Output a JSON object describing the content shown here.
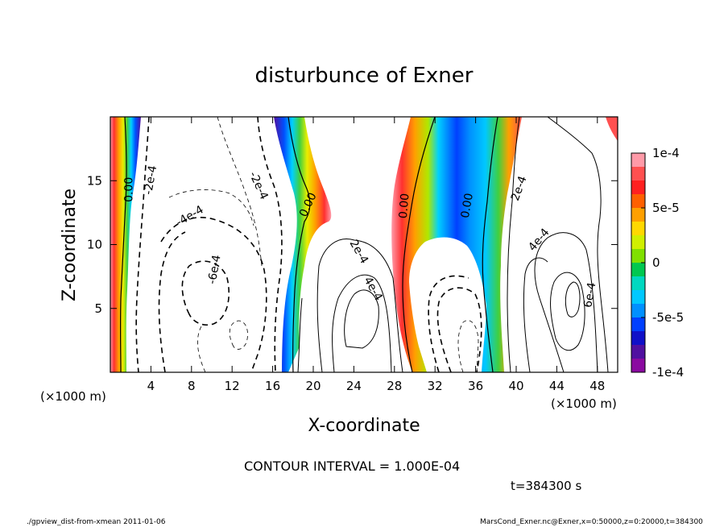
{
  "chart_data": {
    "type": "contour",
    "title": "disturbunce of Exner",
    "xlabel": "X-coordinate",
    "ylabel": "Z-coordinate",
    "x_unit": "(×1000 m)",
    "y_unit": "(×1000 m)",
    "xlim": [
      0,
      50
    ],
    "ylim": [
      0,
      20
    ],
    "x_ticks": [
      4,
      8,
      12,
      16,
      20,
      24,
      28,
      32,
      36,
      40,
      44,
      48
    ],
    "y_ticks": [
      5,
      10,
      15
    ],
    "colorbar": {
      "range": [
        -0.0001,
        0.0001
      ],
      "tick_labels": [
        "1e-4",
        "5e-5",
        "0",
        "-5e-5",
        "-1e-4"
      ],
      "colors": [
        "#ff9aa8",
        "#ff5050",
        "#ff2020",
        "#ff6000",
        "#ffa000",
        "#ffd800",
        "#d0ef00",
        "#80e000",
        "#00c850",
        "#00d8c0",
        "#00c8ff",
        "#0090ff",
        "#0040ff",
        "#1010c8",
        "#5010a0",
        "#8a0aa0"
      ]
    },
    "contour_labels": [
      {
        "text": "0.00",
        "x": 2.2,
        "z": 14.3,
        "angle": -90
      },
      {
        "text": "-2e-4",
        "x": 4.3,
        "z": 15.0,
        "angle": -80
      },
      {
        "text": "-4e-4",
        "x": 8.0,
        "z": 12.0,
        "angle": -30
      },
      {
        "text": "-6e-4",
        "x": 10.6,
        "z": 8.0,
        "angle": -80
      },
      {
        "text": "-2e-4",
        "x": 14.3,
        "z": 14.5,
        "angle": 65
      },
      {
        "text": "0.00",
        "x": 19.8,
        "z": 13.0,
        "angle": -65
      },
      {
        "text": "2e-4",
        "x": 24.2,
        "z": 9.3,
        "angle": 60
      },
      {
        "text": "4e-4",
        "x": 25.6,
        "z": 6.4,
        "angle": 60
      },
      {
        "text": "0.00",
        "x": 29.3,
        "z": 13.0,
        "angle": -85
      },
      {
        "text": "0.00",
        "x": 35.5,
        "z": 13.0,
        "angle": -80
      },
      {
        "text": "2e-4",
        "x": 40.6,
        "z": 14.3,
        "angle": -70
      },
      {
        "text": "4e-4",
        "x": 42.5,
        "z": 10.2,
        "angle": -50
      },
      {
        "text": "6e-4",
        "x": 47.6,
        "z": 6.0,
        "angle": -80
      }
    ],
    "grid": false
  },
  "annotations": {
    "contour_interval": "CONTOUR INTERVAL = 1.000E-04",
    "time": "t=384300 s",
    "footer_left": "./gpview_dist-from-xmean 2011-01-06",
    "footer_right": "MarsCond_Exner.nc@Exner,x=0:50000,z=0:20000,t=384300"
  }
}
